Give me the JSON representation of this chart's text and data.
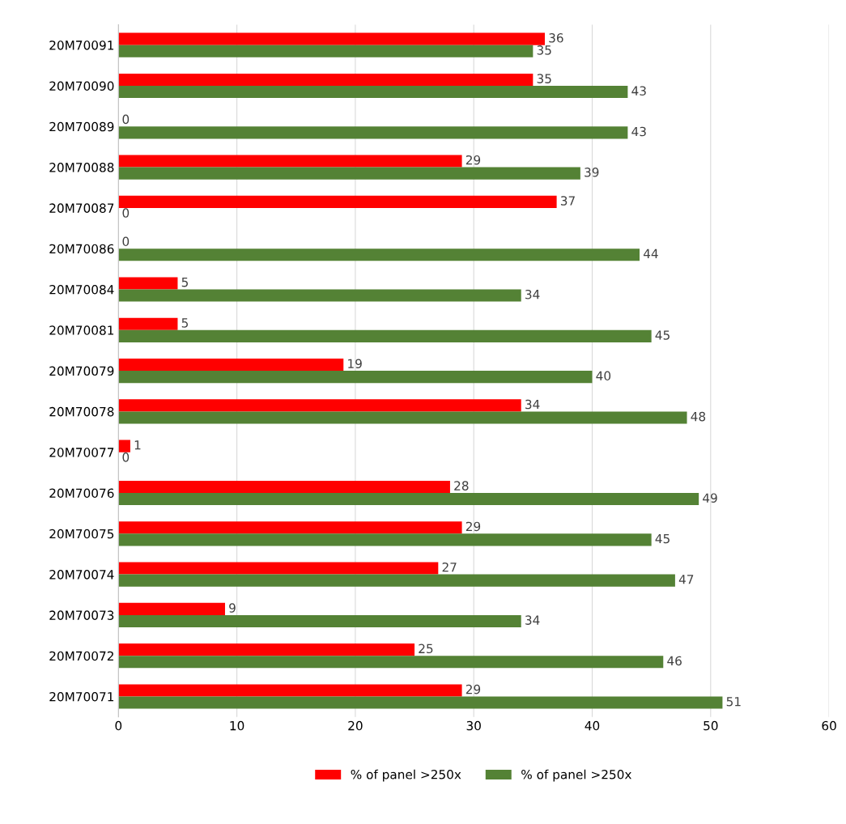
{
  "chart_data": {
    "type": "bar",
    "orientation": "horizontal",
    "categories": [
      "20M70091",
      "20M70090",
      "20M70089",
      "20M70088",
      "20M70087",
      "20M70086",
      "20M70084",
      "20M70081",
      "20M70079",
      "20M70078",
      "20M70077",
      "20M70076",
      "20M70075",
      "20M70074",
      "20M70073",
      "20M70072",
      "20M70071"
    ],
    "series": [
      {
        "name": "% of panel >250x",
        "color": "#ff0000",
        "values": [
          36,
          35,
          0,
          29,
          37,
          0,
          5,
          5,
          19,
          34,
          1,
          28,
          29,
          27,
          9,
          25,
          29
        ]
      },
      {
        "name": "% of panel >250x",
        "color": "#548235",
        "values": [
          35,
          43,
          43,
          39,
          0,
          44,
          34,
          45,
          40,
          48,
          0,
          49,
          45,
          47,
          34,
          46,
          51
        ]
      }
    ],
    "xlim": [
      0,
      60
    ],
    "xticks": [
      0,
      10,
      20,
      30,
      40,
      50,
      60
    ],
    "grid": "x",
    "legend": "bottom",
    "data_labels": true
  }
}
